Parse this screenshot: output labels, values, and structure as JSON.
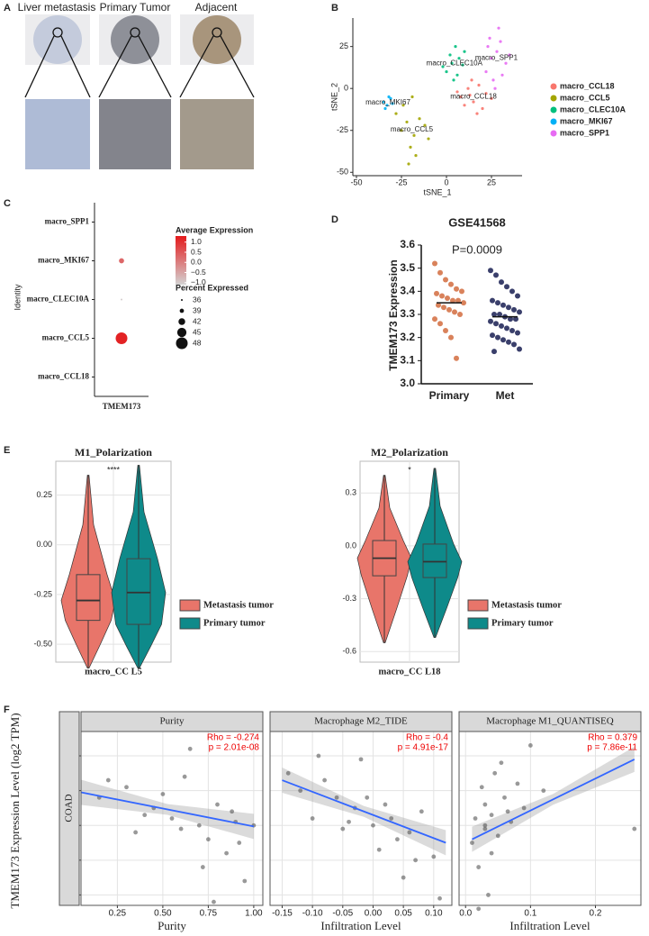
{
  "panel_labels": [
    "A",
    "B",
    "C",
    "D",
    "E",
    "F"
  ],
  "panel_a": {
    "labels": [
      "Liver metastasis",
      "Primary Tumor",
      "Adjacent"
    ]
  },
  "chart_data": [
    {
      "type": "scatter",
      "xlabel": "tSNE_1",
      "ylabel": "tSNE_2",
      "xlim": [
        -52,
        42
      ],
      "ylim": [
        -52,
        42
      ],
      "xticks": [
        -50,
        -25,
        0,
        25
      ],
      "yticks": [
        -50,
        -25,
        0,
        25
      ],
      "grid": false,
      "legend": "right",
      "cluster_labels": true,
      "series": [
        {
          "name": "macro_CCL18",
          "color": "#F8766D",
          "x": [
            8,
            12,
            15,
            18,
            22,
            10,
            20,
            14,
            25,
            6,
            17,
            13
          ],
          "values": [
            -5,
            0,
            -8,
            2,
            -3,
            -10,
            -12,
            5,
            -6,
            -2,
            -15,
            -4
          ]
        },
        {
          "name": "macro_CCL5",
          "color": "#A3A500",
          "x": [
            -28,
            -22,
            -18,
            -15,
            -25,
            -20,
            -12,
            -24,
            -17,
            -10,
            -21,
            -19
          ],
          "values": [
            -15,
            -20,
            -28,
            -18,
            -25,
            -35,
            -22,
            -10,
            -40,
            -30,
            -45,
            -5
          ]
        },
        {
          "name": "macro_CLEC10A",
          "color": "#00BF7D",
          "x": [
            0,
            3,
            6,
            9,
            2,
            7,
            4,
            10,
            -2,
            5
          ],
          "values": [
            10,
            15,
            8,
            14,
            20,
            18,
            5,
            22,
            13,
            25
          ]
        },
        {
          "name": "macro_MKI67",
          "color": "#00B0F6",
          "x": [
            -35,
            -33,
            -31,
            -34,
            -30,
            -32
          ],
          "values": [
            -8,
            -10,
            -6,
            -12,
            -9,
            -5
          ]
        },
        {
          "name": "macro_SPP1",
          "color": "#E76BF3",
          "x": [
            22,
            25,
            28,
            30,
            26,
            33,
            24,
            29,
            35,
            27,
            31,
            23
          ],
          "values": [
            10,
            18,
            22,
            28,
            5,
            15,
            30,
            36,
            20,
            0,
            8,
            25
          ]
        }
      ]
    },
    {
      "type": "dot",
      "ylabel": "Identity",
      "categories": [
        "macro_SPP1",
        "macro_MKI67",
        "macro_CLEC10A",
        "macro_CCL5",
        "macro_CCL18"
      ],
      "x_category": "TMEM173",
      "values": [
        null,
        0.3,
        -1.0,
        1.2,
        null
      ],
      "sizes": [
        null,
        40,
        36,
        48,
        null
      ],
      "color_title": "Average Expression",
      "color_lim": [
        -1.1,
        1.3
      ],
      "color_low": "#d3d3d3",
      "color_high": "#e41a1c",
      "color_ticks": [
        {
          "value": 1.0,
          "label": "1.0"
        },
        0.5,
        {
          "value": 0,
          "label": "0.0"
        },
        {
          "value": -0.5,
          "label": "−0.5"
        },
        {
          "value": -1.0,
          "label": "−1.0"
        }
      ],
      "size_title": "Percent Expressed",
      "size_ticks": [
        36,
        39,
        42,
        45,
        48
      ],
      "size_lim": [
        36,
        48
      ]
    },
    {
      "type": "strip",
      "title": "GSE41568",
      "annotation": "P=0.0009",
      "ylabel": "TMEM173  Expression",
      "ylim": [
        3.0,
        3.6
      ],
      "yticks": [
        {
          "value": 3.0,
          "label": "3.0"
        },
        3.1,
        3.2,
        3.3,
        3.4,
        3.5,
        3.6
      ],
      "means": [
        3.35,
        3.29
      ],
      "series": [
        {
          "name": "Primary",
          "color": "#d9825b",
          "values": [
            3.52,
            3.48,
            3.45,
            3.43,
            3.41,
            3.4,
            3.39,
            3.38,
            3.37,
            3.36,
            3.36,
            3.35,
            3.34,
            3.33,
            3.32,
            3.31,
            3.3,
            3.28,
            3.26,
            3.23,
            3.2,
            3.11
          ]
        },
        {
          "name": "Met",
          "color": "#3a3f6b",
          "values": [
            3.49,
            3.47,
            3.44,
            3.42,
            3.4,
            3.38,
            3.36,
            3.35,
            3.34,
            3.33,
            3.32,
            3.31,
            3.3,
            3.3,
            3.29,
            3.28,
            3.28,
            3.27,
            3.26,
            3.25,
            3.24,
            3.23,
            3.22,
            3.21,
            3.2,
            3.19,
            3.18,
            3.17,
            3.15,
            3.14
          ]
        }
      ]
    },
    {
      "type": "violin",
      "title": "M1_Polarization",
      "annotation": "****",
      "xlabel": "macro_CC L5",
      "ylim": [
        -0.59,
        0.42
      ],
      "yticks": [
        {
          "value": -0.5,
          "label": "-0.50"
        },
        -0.25,
        {
          "value": 0,
          "label": "0.00"
        },
        0.25
      ],
      "grid": true,
      "series": [
        {
          "name": "Metastasis tumor",
          "color": "#e8756a",
          "stats": {
            "min": -0.62,
            "q1": -0.38,
            "median": -0.28,
            "q3": -0.15,
            "max": 0.35
          }
        },
        {
          "name": "Primary tumor",
          "color": "#0e8a8a",
          "stats": {
            "min": -0.62,
            "q1": -0.4,
            "median": -0.24,
            "q3": -0.07,
            "max": 0.4
          }
        }
      ]
    },
    {
      "type": "violin",
      "title": "M2_Polarization",
      "annotation": "*",
      "xlabel": "macro_CC L18",
      "ylim": [
        -0.66,
        0.48
      ],
      "yticks": [
        -0.6,
        -0.3,
        {
          "value": 0,
          "label": "0.0"
        },
        0.3
      ],
      "grid": true,
      "series": [
        {
          "name": "Metastasis tumor",
          "color": "#e8756a",
          "stats": {
            "min": -0.55,
            "q1": -0.17,
            "median": -0.07,
            "q3": 0.03,
            "max": 0.4
          }
        },
        {
          "name": "Primary tumor",
          "color": "#0e8a8a",
          "stats": {
            "min": -0.52,
            "q1": -0.18,
            "median": -0.09,
            "q3": 0.01,
            "max": 0.44
          }
        }
      ]
    },
    {
      "type": "scatter",
      "title": "Purity",
      "xlabel": "Purity",
      "ylabel": "TMEM173 Expression Level (log2 TPM)",
      "row_label": "COAD",
      "annotations": [
        "Rho = -0.274",
        "p = 2.01e-08"
      ],
      "xlim": [
        0.05,
        1.05
      ],
      "ylim": [
        2.7,
        7.7
      ],
      "xticks": [
        0.25,
        {
          "value": 0.5,
          "label": "0.50"
        },
        0.75,
        {
          "value": 1,
          "label": "1.00"
        }
      ],
      "yticks": [
        3,
        4,
        5,
        6,
        7
      ],
      "grid": true,
      "fit": {
        "x": [
          0.05,
          1.0
        ],
        "values": [
          5.95,
          4.97
        ]
      },
      "series": [
        {
          "color": "#555555",
          "x": [
            0.15,
            0.3,
            0.45,
            0.55,
            0.62,
            0.7,
            0.75,
            0.8,
            0.85,
            0.9,
            0.95,
            1.0,
            0.2,
            0.35,
            0.5,
            0.65,
            0.72,
            0.88,
            0.6,
            0.78,
            0.92,
            0.4
          ],
          "values": [
            5.8,
            6.1,
            5.5,
            5.2,
            6.4,
            5.0,
            4.6,
            5.6,
            4.2,
            5.1,
            3.4,
            5.0,
            6.3,
            4.8,
            5.9,
            7.2,
            3.8,
            5.4,
            4.9,
            2.8,
            4.5,
            5.3
          ]
        }
      ]
    },
    {
      "type": "scatter",
      "title": "Macrophage M2_TIDE",
      "xlabel": "Infiltration Level",
      "annotations": [
        "Rho = -0.4",
        "p = 4.91e-17"
      ],
      "xlim": [
        -0.17,
        0.13
      ],
      "ylim": [
        2.7,
        7.7
      ],
      "xticks": [
        -0.15,
        {
          "value": -0.1,
          "label": "-0.10"
        },
        -0.05,
        {
          "value": 0,
          "label": "0.00"
        },
        0.05,
        {
          "value": 0.1,
          "label": "0.10"
        }
      ],
      "yticks": [
        3,
        4,
        5,
        6,
        7
      ],
      "ytick_labels": false,
      "grid": true,
      "fit": {
        "x": [
          -0.15,
          0.12
        ],
        "values": [
          6.3,
          4.5
        ]
      },
      "series": [
        {
          "color": "#555555",
          "x": [
            -0.14,
            -0.12,
            -0.1,
            -0.08,
            -0.06,
            -0.05,
            -0.03,
            -0.02,
            0,
            0.01,
            0.02,
            0.03,
            0.05,
            0.06,
            0.08,
            0.1,
            -0.09,
            -0.04,
            0.04,
            -0.01,
            0.07,
            0.11
          ],
          "values": [
            6.5,
            6.0,
            5.2,
            6.3,
            5.8,
            4.9,
            5.5,
            6.9,
            5.0,
            4.3,
            5.6,
            5.2,
            3.5,
            4.8,
            5.4,
            4.1,
            7.0,
            5.1,
            4.6,
            5.8,
            4.0,
            2.9
          ]
        }
      ]
    },
    {
      "type": "scatter",
      "title": "Macrophage M1_QUANTISEQ",
      "xlabel": "Infiltration Level",
      "annotations": [
        "Rho = 0.379",
        "p = 7.86e-11"
      ],
      "xlim": [
        -0.01,
        0.27
      ],
      "ylim": [
        2.7,
        7.7
      ],
      "xticks": [
        {
          "value": 0,
          "label": "0.0"
        },
        0.1,
        0.2
      ],
      "yticks": [
        3,
        4,
        5,
        6,
        7
      ],
      "ytick_labels": false,
      "grid": true,
      "fit": {
        "x": [
          0.01,
          0.26
        ],
        "values": [
          4.6,
          6.9
        ]
      },
      "series": [
        {
          "color": "#555555",
          "x": [
            0.01,
            0.015,
            0.02,
            0.025,
            0.03,
            0.03,
            0.035,
            0.04,
            0.045,
            0.05,
            0.06,
            0.07,
            0.08,
            0.09,
            0.1,
            0.12,
            0.02,
            0.04,
            0.055,
            0.26,
            0.03,
            0.065
          ],
          "values": [
            4.5,
            5.2,
            3.8,
            6.1,
            4.9,
            5.6,
            3.0,
            5.3,
            6.5,
            4.7,
            5.8,
            5.1,
            6.2,
            5.5,
            7.3,
            6.0,
            2.6,
            4.2,
            6.8,
            4.9,
            5.0,
            5.4
          ]
        }
      ]
    }
  ]
}
